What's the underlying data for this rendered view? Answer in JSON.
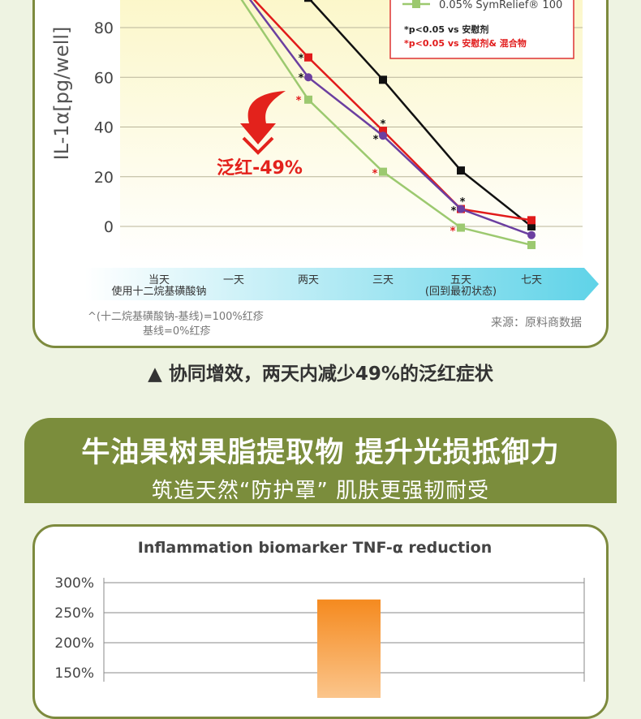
{
  "chart1": {
    "ylabel": "IL-1α[pg/well]",
    "yticks": [
      "80",
      "60",
      "40",
      "20",
      "0"
    ],
    "ytick_values": [
      80,
      60,
      40,
      20,
      0
    ],
    "xlabels": [
      {
        "line1": "当天",
        "line2": "使用十二烷基磺酸钠"
      },
      {
        "line1": "一天",
        "line2": ""
      },
      {
        "line1": "两天",
        "line2": ""
      },
      {
        "line1": "三天",
        "line2": ""
      },
      {
        "line1": "五天",
        "line2": "(回到最初状态)"
      },
      {
        "line1": "七天",
        "line2": ""
      }
    ],
    "legend_partial_entry": "0.05% SymRelief® 100",
    "legend_note_black": "*p<0.05 vs 安慰剂",
    "legend_note_red": "*p<0.05 vs 安慰剂& 混合物",
    "callout": "泛红-49%",
    "footnote_line1": "^(十二烷基磺酸钠-基线)=100%红疹",
    "footnote_line2": "基线=0%红疹",
    "source": "来源：原料商数据",
    "colors": {
      "black": "#111111",
      "red": "#e11b1b",
      "purple": "#6b3fa0",
      "green": "#9cc96f",
      "arrow": "#e3221c",
      "band": "#5fd3e8"
    }
  },
  "chart_data": [
    {
      "type": "line",
      "title": "",
      "xlabel": "",
      "ylabel": "IL-1α[pg/well]",
      "categories": [
        "当天",
        "一天",
        "两天",
        "三天",
        "五天",
        "七天"
      ],
      "ylim": [
        -15,
        95
      ],
      "grid": true,
      "series": [
        {
          "name": "",
          "color": "#111111",
          "values": [
            null,
            100,
            92,
            59,
            22.5,
            0
          ]
        },
        {
          "name": "",
          "color": "#e11b1b",
          "values": [
            null,
            100,
            68,
            38.5,
            7,
            2.5
          ]
        },
        {
          "name": "",
          "color": "#6b3fa0",
          "values": [
            null,
            100,
            60,
            36.5,
            7,
            -3.5
          ]
        },
        {
          "name": "0.05% SymRelief® 100",
          "color": "#9cc96f",
          "values": [
            null,
            96,
            51,
            22,
            -0.5,
            -7.5
          ]
        }
      ]
    },
    {
      "type": "bar",
      "title": "Inflammation biomarker TNF-α reduction",
      "yticks": [
        "300%",
        "250%",
        "200%",
        "150%"
      ],
      "ylim": [
        100,
        300
      ],
      "categories": [
        ""
      ],
      "values": [
        272
      ],
      "color": "#f58a1f"
    }
  ],
  "caption": "▲ 协同增效，两天内减少49%的泛红症状",
  "banner": {
    "title": "牛油果树果脂提取物 提升光损抵御力",
    "subtitle": "筑造天然“防护罩” 肌肤更强韧耐受"
  }
}
